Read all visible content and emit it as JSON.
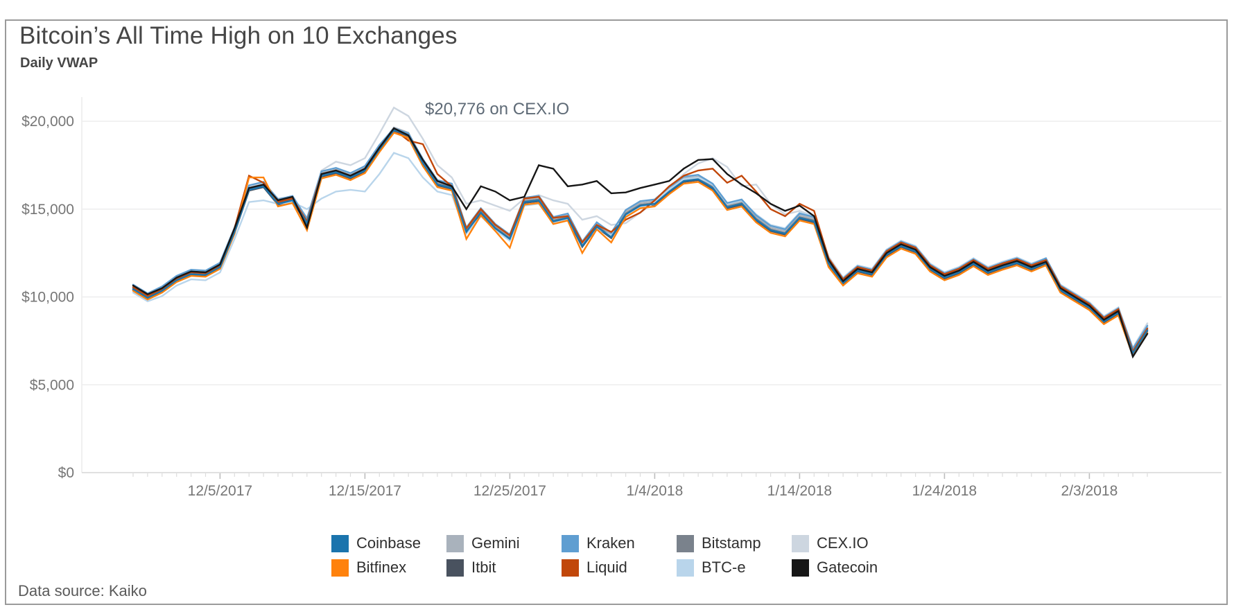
{
  "header": {
    "title": "Bitcoin’s All Time High on 10 Exchanges",
    "subtitle": "Daily VWAP"
  },
  "annotation": {
    "text": "$20,776 on CEX.IO"
  },
  "footer": {
    "source": "Data source: Kaiko"
  },
  "chart_data": {
    "type": "line",
    "title": "Bitcoin’s All Time High on 10 Exchanges",
    "subtitle": "Daily VWAP",
    "grid": "horizontal",
    "legend_position": "bottom",
    "ylim": [
      0,
      21500
    ],
    "y_ticks": [
      0,
      5000,
      10000,
      15000,
      20000
    ],
    "y_tick_labels": [
      "$0",
      "$5,000",
      "$10,000",
      "$15,000",
      "$20,000"
    ],
    "x_tick_labels": [
      "12/5/2017",
      "12/15/2017",
      "12/25/2017",
      "1/4/2018",
      "1/14/2018",
      "1/24/2018",
      "2/3/2018"
    ],
    "annotation": {
      "text": "$20,776 on CEX.IO",
      "x": "12/17/2017",
      "y": 20776,
      "series": "CEX.IO"
    },
    "style": {
      "grid_color": "#ededee",
      "axis_color": "#d6d6d6",
      "minor_tick_color": "#dcdcdc",
      "major_tick_color": "#bdbdbd",
      "tick_label_color": "#767676"
    },
    "x": [
      "11/29/2017",
      "11/30/2017",
      "12/1/2017",
      "12/2/2017",
      "12/3/2017",
      "12/4/2017",
      "12/5/2017",
      "12/6/2017",
      "12/7/2017",
      "12/8/2017",
      "12/9/2017",
      "12/10/2017",
      "12/11/2017",
      "12/12/2017",
      "12/13/2017",
      "12/14/2017",
      "12/15/2017",
      "12/16/2017",
      "12/17/2017",
      "12/18/2017",
      "12/19/2017",
      "12/20/2017",
      "12/21/2017",
      "12/22/2017",
      "12/23/2017",
      "12/24/2017",
      "12/25/2017",
      "12/26/2017",
      "12/27/2017",
      "12/28/2017",
      "12/29/2017",
      "12/30/2017",
      "12/31/2017",
      "1/1/2018",
      "1/2/2018",
      "1/3/2018",
      "1/4/2018",
      "1/5/2018",
      "1/6/2018",
      "1/7/2018",
      "1/8/2018",
      "1/9/2018",
      "1/10/2018",
      "1/11/2018",
      "1/12/2018",
      "1/13/2018",
      "1/14/2018",
      "1/15/2018",
      "1/16/2018",
      "1/17/2018",
      "1/18/2018",
      "1/19/2018",
      "1/20/2018",
      "1/21/2018",
      "1/22/2018",
      "1/23/2018",
      "1/24/2018",
      "1/25/2018",
      "1/26/2018",
      "1/27/2018",
      "1/28/2018",
      "1/29/2018",
      "1/30/2018",
      "1/31/2018",
      "2/1/2018",
      "2/2/2018",
      "2/3/2018",
      "2/4/2018",
      "2/5/2018",
      "2/6/2018",
      "2/7/2018"
    ],
    "series": [
      {
        "name": "Coinbase",
        "color": "#1b74ad",
        "values": [
          10450,
          9950,
          10350,
          10950,
          11300,
          11250,
          11700,
          13700,
          16100,
          16300,
          15300,
          15500,
          14200,
          16900,
          17100,
          16800,
          17200,
          18400,
          19500,
          19200,
          17600,
          16400,
          16200,
          13700,
          14800,
          13900,
          13300,
          15400,
          15500,
          14300,
          14500,
          12900,
          14000,
          13400,
          14700,
          15200,
          15300,
          16000,
          16600,
          16700,
          16200,
          15100,
          15300,
          14400,
          13800,
          13600,
          14500,
          14300,
          11900,
          10800,
          11500,
          11300,
          12400,
          12900,
          12600,
          11600,
          11100,
          11400,
          11900,
          11400,
          11700,
          11950,
          11600,
          11950,
          10400,
          9900,
          9400,
          8600,
          9100,
          6800,
          8100
        ]
      },
      {
        "name": "Bitfinex",
        "color": "#ff820d",
        "values": [
          10350,
          9850,
          10250,
          10850,
          11200,
          11150,
          11600,
          13600,
          16800,
          16800,
          15150,
          15350,
          13800,
          16750,
          16950,
          16650,
          17050,
          18250,
          19350,
          19050,
          17450,
          16250,
          16050,
          13300,
          14650,
          13750,
          12800,
          15250,
          15350,
          14150,
          14350,
          12500,
          13850,
          13100,
          14550,
          15050,
          15150,
          15850,
          16450,
          16550,
          16050,
          14950,
          15150,
          14250,
          13650,
          13450,
          14350,
          14150,
          11700,
          10650,
          11350,
          11150,
          12250,
          12750,
          12450,
          11450,
          10950,
          11250,
          11750,
          11250,
          11550,
          11800,
          11450,
          11800,
          10250,
          9750,
          9250,
          8450,
          8950,
          6650,
          7950
        ]
      },
      {
        "name": "Gemini",
        "color": "#a9b2bc",
        "values": [
          10600,
          10100,
          10500,
          11100,
          11450,
          11400,
          11850,
          13850,
          16250,
          16450,
          15450,
          15650,
          14350,
          17050,
          17250,
          16950,
          17350,
          18550,
          19650,
          19350,
          17750,
          16550,
          16350,
          13850,
          14950,
          14050,
          13450,
          15550,
          15650,
          14450,
          14650,
          13050,
          14150,
          13550,
          14850,
          15350,
          15450,
          16150,
          16750,
          16850,
          16350,
          15250,
          15450,
          14550,
          13950,
          13750,
          14650,
          14450,
          12050,
          10950,
          11650,
          11450,
          12550,
          13050,
          12750,
          11750,
          11250,
          11550,
          12050,
          11550,
          11850,
          12100,
          11750,
          12100,
          10550,
          10050,
          9550,
          8750,
          9250,
          6950,
          8250
        ]
      },
      {
        "name": "Itbit",
        "color": "#49525f",
        "values": [
          10400,
          9900,
          10300,
          10900,
          11250,
          11200,
          11650,
          13650,
          16050,
          16250,
          15250,
          15450,
          14150,
          16850,
          17050,
          16750,
          17150,
          18350,
          19450,
          19150,
          17550,
          16350,
          16150,
          13650,
          14750,
          13850,
          13250,
          15350,
          15450,
          14250,
          14450,
          12850,
          13950,
          13350,
          14650,
          15150,
          15250,
          15950,
          16550,
          16650,
          16150,
          15050,
          15250,
          14350,
          13750,
          13550,
          14450,
          14250,
          11850,
          10750,
          11450,
          11250,
          12350,
          12850,
          12550,
          11550,
          11050,
          11350,
          11850,
          11350,
          11650,
          11900,
          11550,
          11900,
          10350,
          9850,
          9350,
          8550,
          9050,
          6750,
          8050
        ]
      },
      {
        "name": "Kraken",
        "color": "#5f9ed1",
        "values": [
          10700,
          10200,
          10600,
          11200,
          11550,
          11500,
          11950,
          13950,
          16350,
          16550,
          15550,
          15750,
          14450,
          17150,
          17350,
          17050,
          17450,
          18650,
          19600,
          19300,
          17850,
          16650,
          16450,
          13950,
          15050,
          14150,
          13550,
          15650,
          15750,
          14550,
          14750,
          13150,
          14250,
          13650,
          14950,
          15450,
          15550,
          16250,
          16850,
          16950,
          16450,
          15350,
          15550,
          14650,
          14050,
          13850,
          14750,
          14550,
          12150,
          11050,
          11750,
          11550,
          12650,
          13150,
          12850,
          11850,
          11350,
          11650,
          12150,
          11650,
          11950,
          12200,
          11850,
          12200,
          10650,
          10150,
          9650,
          8850,
          9350,
          7050,
          8350
        ]
      },
      {
        "name": "Liquid",
        "color": "#c1470a",
        "values": [
          10550,
          10050,
          10450,
          11050,
          11400,
          11350,
          11800,
          13900,
          16900,
          16500,
          15400,
          15600,
          14300,
          17000,
          17200,
          16900,
          17300,
          18500,
          19550,
          18900,
          18700,
          17000,
          16300,
          13900,
          15000,
          14100,
          13500,
          15600,
          15700,
          14500,
          14600,
          13100,
          14100,
          13700,
          14400,
          14800,
          15500,
          16300,
          16900,
          17200,
          17300,
          16500,
          16900,
          16000,
          15000,
          14600,
          15300,
          14900,
          12200,
          11000,
          11700,
          11500,
          12600,
          13100,
          12800,
          11800,
          11300,
          11600,
          12100,
          11600,
          11900,
          12150,
          11800,
          12100,
          10600,
          10100,
          9600,
          8800,
          9300,
          6900,
          8200
        ]
      },
      {
        "name": "Bitstamp",
        "color": "#7a828c",
        "values": [
          10500,
          10000,
          10400,
          11000,
          11350,
          11300,
          11750,
          13750,
          16150,
          16350,
          15350,
          15550,
          14250,
          16950,
          17150,
          16850,
          17250,
          18450,
          19550,
          19250,
          17650,
          16450,
          16250,
          13750,
          14850,
          13950,
          13350,
          15450,
          15550,
          14350,
          14550,
          12950,
          14050,
          13450,
          14750,
          15250,
          15350,
          16050,
          16650,
          16750,
          16250,
          15150,
          15350,
          14450,
          13850,
          13650,
          14550,
          14350,
          11950,
          10850,
          11550,
          11350,
          12450,
          12950,
          12650,
          11650,
          11150,
          11450,
          11950,
          11450,
          11750,
          12000,
          11650,
          12000,
          10450,
          9950,
          9450,
          8650,
          9150,
          6850,
          8150
        ]
      },
      {
        "name": "BTC-e",
        "color": "#b9d5eb",
        "values": [
          10250,
          9750,
          10050,
          10650,
          11000,
          10950,
          11400,
          13300,
          15400,
          15500,
          15300,
          15400,
          15000,
          15600,
          16000,
          16100,
          16000,
          17000,
          18200,
          17900,
          16800,
          16000,
          15800,
          13600,
          14600,
          13800,
          13200,
          15200,
          15300,
          14200,
          14400,
          13000,
          13900,
          13500,
          14600,
          15100,
          15300,
          16100,
          16700,
          16800,
          16400,
          15300,
          15500,
          14700,
          14100,
          13900,
          14800,
          14600,
          12200,
          11100,
          11800,
          11600,
          12700,
          13200,
          12900,
          11900,
          11400,
          11700,
          12200,
          11700,
          12000,
          12250,
          11900,
          12200,
          10700,
          10200,
          9700,
          8900,
          9400,
          7100,
          8400
        ]
      },
      {
        "name": "CEX.IO",
        "color": "#cdd6e0",
        "values": [
          10550,
          10050,
          10450,
          11050,
          11400,
          11350,
          11800,
          13900,
          16300,
          16500,
          15600,
          15700,
          14500,
          17200,
          17700,
          17500,
          17900,
          19300,
          20776,
          20300,
          19000,
          17500,
          16800,
          15300,
          15500,
          15200,
          14900,
          15600,
          15800,
          15500,
          15300,
          14400,
          14600,
          14100,
          14200,
          14800,
          15400,
          16200,
          17000,
          17600,
          17900,
          17400,
          16300,
          16400,
          15300,
          14700,
          14900,
          14600,
          12300,
          11100,
          11800,
          11600,
          12700,
          13200,
          12900,
          11900,
          11400,
          11700,
          12200,
          11700,
          12000,
          12250,
          11900,
          12200,
          10700,
          10200,
          9700,
          8900,
          9400,
          7100,
          8500
        ]
      },
      {
        "name": "Gatecoin",
        "color": "#161616",
        "values": [
          10650,
          10150,
          10500,
          11100,
          11450,
          11400,
          11850,
          13900,
          16200,
          16400,
          15500,
          15700,
          13950,
          17000,
          17200,
          16900,
          17300,
          18500,
          19600,
          19200,
          17800,
          16600,
          16300,
          15000,
          16300,
          16000,
          15500,
          15700,
          17500,
          17300,
          16300,
          16400,
          16600,
          15900,
          15950,
          16200,
          16400,
          16600,
          17300,
          17800,
          17850,
          17000,
          16400,
          15900,
          15300,
          14900,
          15200,
          14600,
          12100,
          10900,
          11600,
          11400,
          12500,
          13000,
          12700,
          11700,
          11200,
          11500,
          12000,
          11500,
          11800,
          12050,
          11700,
          12000,
          10500,
          10000,
          9500,
          8700,
          9200,
          6600,
          7900
        ]
      }
    ],
    "legend_order": [
      [
        "Coinbase",
        "Gemini",
        "Kraken",
        "Bitstamp",
        "CEX.IO"
      ],
      [
        "Bitfinex",
        "Itbit",
        "Liquid",
        "BTC-e",
        "Gatecoin"
      ]
    ],
    "draw_order": [
      "Gemini",
      "Bitstamp",
      "Itbit",
      "CEX.IO",
      "BTC-e",
      "Kraken",
      "Liquid",
      "Bitfinex",
      "Coinbase",
      "Gatecoin"
    ]
  }
}
